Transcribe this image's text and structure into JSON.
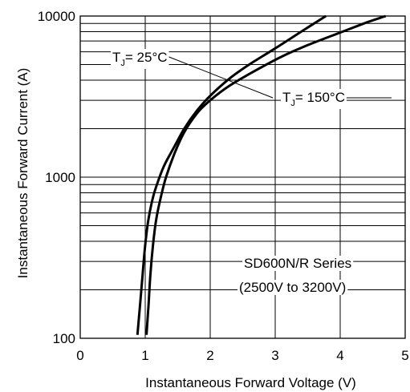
{
  "chart_data": {
    "type": "line",
    "xlabel": "Instantaneous Forward Voltage (V)",
    "ylabel": "Instantaneous Forward Current (A)",
    "xlim": [
      0,
      5
    ],
    "ylim": [
      100,
      10000
    ],
    "yscale": "log",
    "grid": true,
    "x_ticks": [
      "0",
      "1",
      "2",
      "3",
      "4",
      "5"
    ],
    "y_ticks": [
      "100",
      "1000",
      "10000"
    ],
    "annotations": [
      {
        "text": "SD600N/R Series"
      },
      {
        "text": "(2500V to 3200V)"
      }
    ],
    "series": [
      {
        "name": "TJ = 25°C",
        "name_main": "T",
        "name_sub": "J",
        "name_rest": "= 25°C",
        "x": [
          0.88,
          0.92,
          0.96,
          1.0,
          1.05,
          1.12,
          1.2,
          1.3,
          1.45,
          1.6,
          1.8,
          2.0,
          2.3,
          2.6,
          3.0,
          3.4,
          3.78
        ],
        "y": [
          105,
          160,
          250,
          380,
          550,
          750,
          950,
          1200,
          1550,
          2000,
          2600,
          3200,
          4100,
          5000,
          6300,
          8000,
          10000
        ]
      },
      {
        "name": "TJ = 150°C",
        "name_main": "T",
        "name_sub": "J",
        "name_rest": "= 150°C",
        "x": [
          1.02,
          1.05,
          1.08,
          1.12,
          1.17,
          1.24,
          1.32,
          1.45,
          1.6,
          1.8,
          2.0,
          2.3,
          2.7,
          3.1,
          3.5,
          4.0,
          4.4,
          4.7
        ],
        "y": [
          105,
          160,
          250,
          380,
          550,
          750,
          1000,
          1400,
          1900,
          2500,
          3000,
          3700,
          4600,
          5600,
          6600,
          7900,
          9100,
          10000
        ]
      }
    ]
  }
}
